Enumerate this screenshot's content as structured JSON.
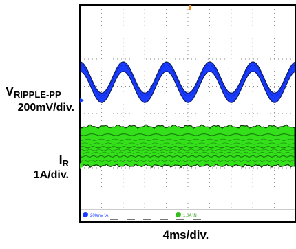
{
  "chart_data": {
    "type": "line",
    "title": "",
    "xlabel": "4ms/div.",
    "ylabel": "",
    "x_divisions": 10,
    "y_divisions": 8,
    "grid": true,
    "series": [
      {
        "name": "V_RIPPLE-PP",
        "label_main": "V",
        "label_sub": "RIPPLE-PP",
        "scale": "200mV/div.",
        "color": "#1a3cff",
        "waveform": "sine",
        "cycles_on_screen": 5,
        "offset_div": 1.15,
        "ripple_pp_div": 1.15,
        "band_div": 0.35
      },
      {
        "name": "I_R",
        "label_main": "I",
        "label_sub": "R",
        "scale": "1A/div.",
        "color": "#33e01a",
        "waveform": "noise-band",
        "offset_div": -1.2,
        "band_pp_div": 1.45
      }
    ],
    "status_bar": {
      "ch1_readout": "200mV \\A",
      "ch2_readout": "1.0A \\N"
    }
  }
}
